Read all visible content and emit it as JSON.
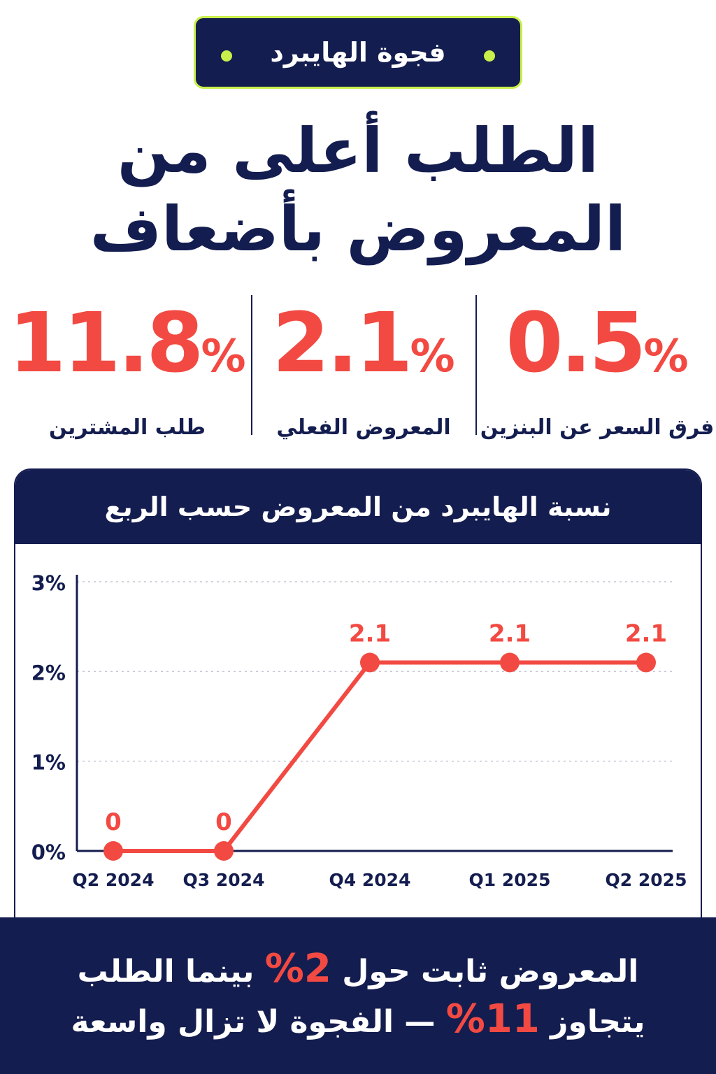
{
  "badge": {
    "text": "فجوة الهايبرد"
  },
  "headline": {
    "line1": "الطلب أعلى من",
    "line2": "المعروض بأضعاف"
  },
  "stats": [
    {
      "value": "0.5",
      "unit": "%",
      "label": "فرق السعر عن البنزين"
    },
    {
      "value": "2.1",
      "unit": "%",
      "label": "المعروض الفعلي"
    },
    {
      "value": "11.8",
      "unit": "%",
      "label": "طلب المشترين"
    }
  ],
  "colors": {
    "navy": "#141d4f",
    "accent": "#f24a42",
    "lime": "#c9f04a"
  },
  "chart_data": {
    "type": "line",
    "title": "نسبة الهايبرد من المعروض حسب الربع",
    "categories": [
      "Q2 2024",
      "Q3 2024",
      "Q4 2024",
      "Q1 2025",
      "Q2 2025"
    ],
    "values": [
      0,
      0,
      2.1,
      2.1,
      2.1
    ],
    "data_labels": [
      "0",
      "0",
      "2.1",
      "2.1",
      "2.1"
    ],
    "y_ticks": [
      "0%",
      "1%",
      "2%",
      "3%"
    ],
    "ylim": [
      0,
      3
    ],
    "grid": true,
    "legend": "none"
  },
  "footer": {
    "line1_pre": "المعروض ثابت حول",
    "line1_hl": "2%",
    "line1_post": "بينما الطلب",
    "line2_pre": "يتجاوز",
    "line2_hl": "11%",
    "line2_post": "— الفجوة لا تزال واسعة"
  }
}
